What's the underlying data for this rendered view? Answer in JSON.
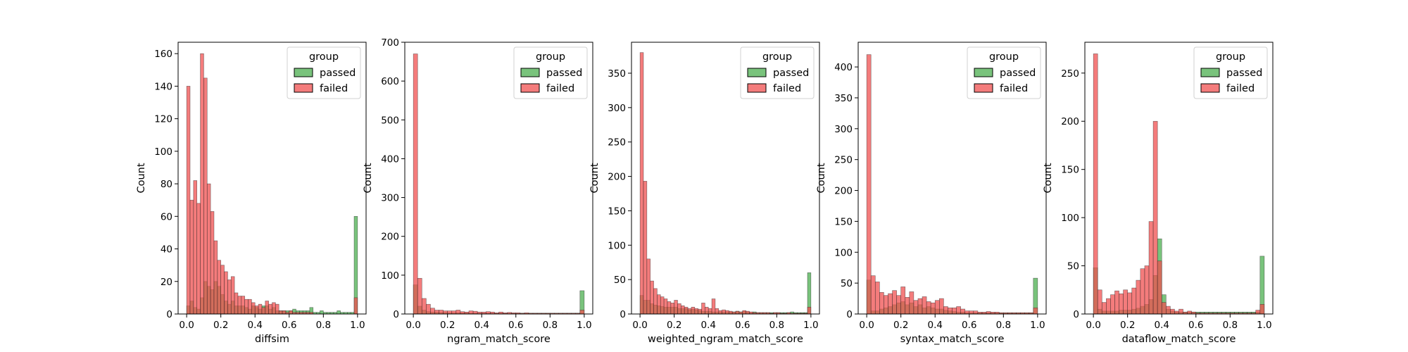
{
  "chart_data": [
    {
      "type": "histogram",
      "xlabel": "diffsim",
      "ylabel": "Count",
      "xlim": [
        -0.05,
        1.05
      ],
      "ylim": [
        0,
        167
      ],
      "xticks": [
        0.0,
        0.2,
        0.4,
        0.6,
        0.8,
        1.0
      ],
      "yticks": [
        0,
        20,
        40,
        60,
        80,
        100,
        120,
        140,
        160
      ],
      "bin_start": 0.0,
      "bin_width": 0.02,
      "legend": {
        "title": "group",
        "placement": "top-right",
        "entries": [
          "passed",
          "failed"
        ]
      },
      "series": [
        {
          "name": "passed",
          "color": "#4caf50",
          "values": [
            5,
            8,
            4,
            3,
            10,
            20,
            17,
            15,
            20,
            17,
            12,
            8,
            6,
            8,
            5,
            5,
            5,
            4,
            3,
            5,
            4,
            3,
            5,
            5,
            3,
            4,
            2,
            2,
            2,
            2,
            2,
            3,
            2,
            2,
            2,
            2,
            4,
            1,
            1,
            2,
            1,
            1,
            1,
            1,
            2,
            1,
            1,
            1,
            1,
            60
          ]
        },
        {
          "name": "failed",
          "color": "#f05050",
          "values": [
            140,
            70,
            82,
            68,
            160,
            145,
            80,
            63,
            45,
            33,
            30,
            26,
            21,
            23,
            13,
            11,
            11,
            9,
            9,
            7,
            5,
            6,
            4,
            8,
            6,
            7,
            6,
            2,
            2,
            1,
            2,
            1,
            1,
            1,
            1,
            1,
            1,
            0,
            0,
            0,
            0,
            0,
            0,
            0,
            0,
            0,
            0,
            0,
            0,
            10
          ]
        }
      ]
    },
    {
      "type": "histogram",
      "xlabel": "ngram_match_score",
      "ylabel": "Count",
      "xlim": [
        -0.05,
        1.05
      ],
      "ylim": [
        0,
        700
      ],
      "xticks": [
        0.0,
        0.2,
        0.4,
        0.6,
        0.8,
        1.0
      ],
      "yticks": [
        0,
        100,
        200,
        300,
        400,
        500,
        600,
        700
      ],
      "bin_start": 0.0,
      "bin_width": 0.025,
      "legend": {
        "title": "group",
        "placement": "top-right",
        "entries": [
          "passed",
          "failed"
        ]
      },
      "series": [
        {
          "name": "passed",
          "color": "#4caf50",
          "values": [
            75,
            20,
            10,
            6,
            5,
            5,
            4,
            4,
            3,
            3,
            3,
            3,
            3,
            2,
            2,
            2,
            2,
            2,
            2,
            2,
            2,
            2,
            2,
            2,
            2,
            2,
            2,
            2,
            2,
            2,
            2,
            2,
            2,
            2,
            2,
            2,
            2,
            2,
            2,
            60
          ]
        },
        {
          "name": "failed",
          "color": "#f05050",
          "values": [
            670,
            92,
            40,
            25,
            15,
            10,
            10,
            8,
            8,
            8,
            10,
            6,
            5,
            8,
            7,
            5,
            5,
            6,
            5,
            3,
            5,
            3,
            4,
            3,
            3,
            2,
            3,
            2,
            2,
            2,
            2,
            2,
            2,
            2,
            2,
            2,
            2,
            2,
            2,
            10
          ]
        }
      ]
    },
    {
      "type": "histogram",
      "xlabel": "weighted_ngram_match_score",
      "ylabel": "Count",
      "xlim": [
        -0.05,
        1.05
      ],
      "ylim": [
        0,
        395
      ],
      "xticks": [
        0.0,
        0.2,
        0.4,
        0.6,
        0.8,
        1.0
      ],
      "yticks": [
        0,
        50,
        100,
        150,
        200,
        250,
        300,
        350
      ],
      "bin_start": 0.0,
      "bin_width": 0.02,
      "legend": {
        "title": "group",
        "placement": "top-right",
        "entries": [
          "passed",
          "failed"
        ]
      },
      "series": [
        {
          "name": "passed",
          "color": "#4caf50",
          "values": [
            27,
            20,
            20,
            15,
            13,
            12,
            11,
            10,
            10,
            10,
            10,
            8,
            8,
            8,
            6,
            7,
            6,
            5,
            4,
            4,
            4,
            3,
            3,
            3,
            3,
            3,
            3,
            3,
            4,
            3,
            4,
            3,
            2,
            3,
            2,
            2,
            2,
            2,
            2,
            2,
            2,
            2,
            2,
            2,
            3,
            2,
            2,
            2,
            2,
            60
          ]
        },
        {
          "name": "failed",
          "color": "#f05050",
          "values": [
            380,
            193,
            80,
            48,
            37,
            28,
            25,
            22,
            18,
            16,
            20,
            15,
            12,
            10,
            8,
            10,
            8,
            7,
            16,
            10,
            8,
            22,
            8,
            5,
            6,
            5,
            4,
            3,
            4,
            3,
            5,
            4,
            3,
            2,
            2,
            2,
            2,
            2,
            1,
            2,
            2,
            1,
            1,
            2,
            1,
            1,
            1,
            1,
            1,
            10
          ]
        }
      ]
    },
    {
      "type": "histogram",
      "xlabel": "syntax_match_score",
      "ylabel": "Count",
      "xlim": [
        -0.05,
        1.05
      ],
      "ylim": [
        0,
        440
      ],
      "xticks": [
        0.0,
        0.2,
        0.4,
        0.6,
        0.8,
        1.0
      ],
      "yticks": [
        0,
        50,
        100,
        150,
        200,
        250,
        300,
        350,
        400
      ],
      "bin_start": 0.0,
      "bin_width": 0.025,
      "legend": {
        "title": "group",
        "placement": "top-right",
        "entries": [
          "passed",
          "failed"
        ]
      },
      "series": [
        {
          "name": "passed",
          "color": "#4caf50",
          "values": [
            55,
            5,
            5,
            8,
            10,
            12,
            15,
            18,
            20,
            15,
            18,
            12,
            15,
            10,
            12,
            10,
            8,
            8,
            6,
            5,
            4,
            3,
            3,
            2,
            2,
            2,
            2,
            2,
            2,
            2,
            2,
            2,
            2,
            2,
            2,
            2,
            2,
            2,
            2,
            58
          ]
        },
        {
          "name": "failed",
          "color": "#f05050",
          "values": [
            420,
            62,
            52,
            35,
            30,
            33,
            38,
            30,
            44,
            27,
            36,
            22,
            25,
            28,
            20,
            18,
            22,
            25,
            12,
            10,
            10,
            12,
            8,
            5,
            5,
            5,
            3,
            3,
            4,
            3,
            3,
            2,
            2,
            2,
            2,
            2,
            2,
            2,
            2,
            10
          ]
        }
      ]
    },
    {
      "type": "histogram",
      "xlabel": "dataflow_match_score",
      "ylabel": "Count",
      "xlim": [
        -0.05,
        1.05
      ],
      "ylim": [
        0,
        282
      ],
      "xticks": [
        0.0,
        0.2,
        0.4,
        0.6,
        0.8,
        1.0
      ],
      "yticks": [
        0,
        50,
        100,
        150,
        200,
        250
      ],
      "bin_start": 0.0,
      "bin_width": 0.025,
      "legend": {
        "title": "group",
        "placement": "top-right",
        "entries": [
          "passed",
          "failed"
        ]
      },
      "series": [
        {
          "name": "passed",
          "color": "#4caf50",
          "values": [
            48,
            5,
            3,
            3,
            3,
            3,
            4,
            4,
            4,
            5,
            6,
            8,
            10,
            15,
            40,
            78,
            20,
            5,
            3,
            2,
            2,
            2,
            2,
            2,
            2,
            2,
            2,
            2,
            2,
            2,
            2,
            2,
            2,
            2,
            2,
            2,
            2,
            2,
            2,
            60
          ]
        },
        {
          "name": "failed",
          "color": "#f05050",
          "values": [
            270,
            25,
            12,
            16,
            20,
            24,
            21,
            25,
            22,
            27,
            35,
            47,
            50,
            96,
            200,
            55,
            12,
            8,
            5,
            3,
            5,
            2,
            3,
            2,
            1,
            1,
            1,
            1,
            1,
            1,
            1,
            1,
            1,
            1,
            1,
            1,
            1,
            1,
            4,
            10
          ]
        }
      ]
    }
  ]
}
